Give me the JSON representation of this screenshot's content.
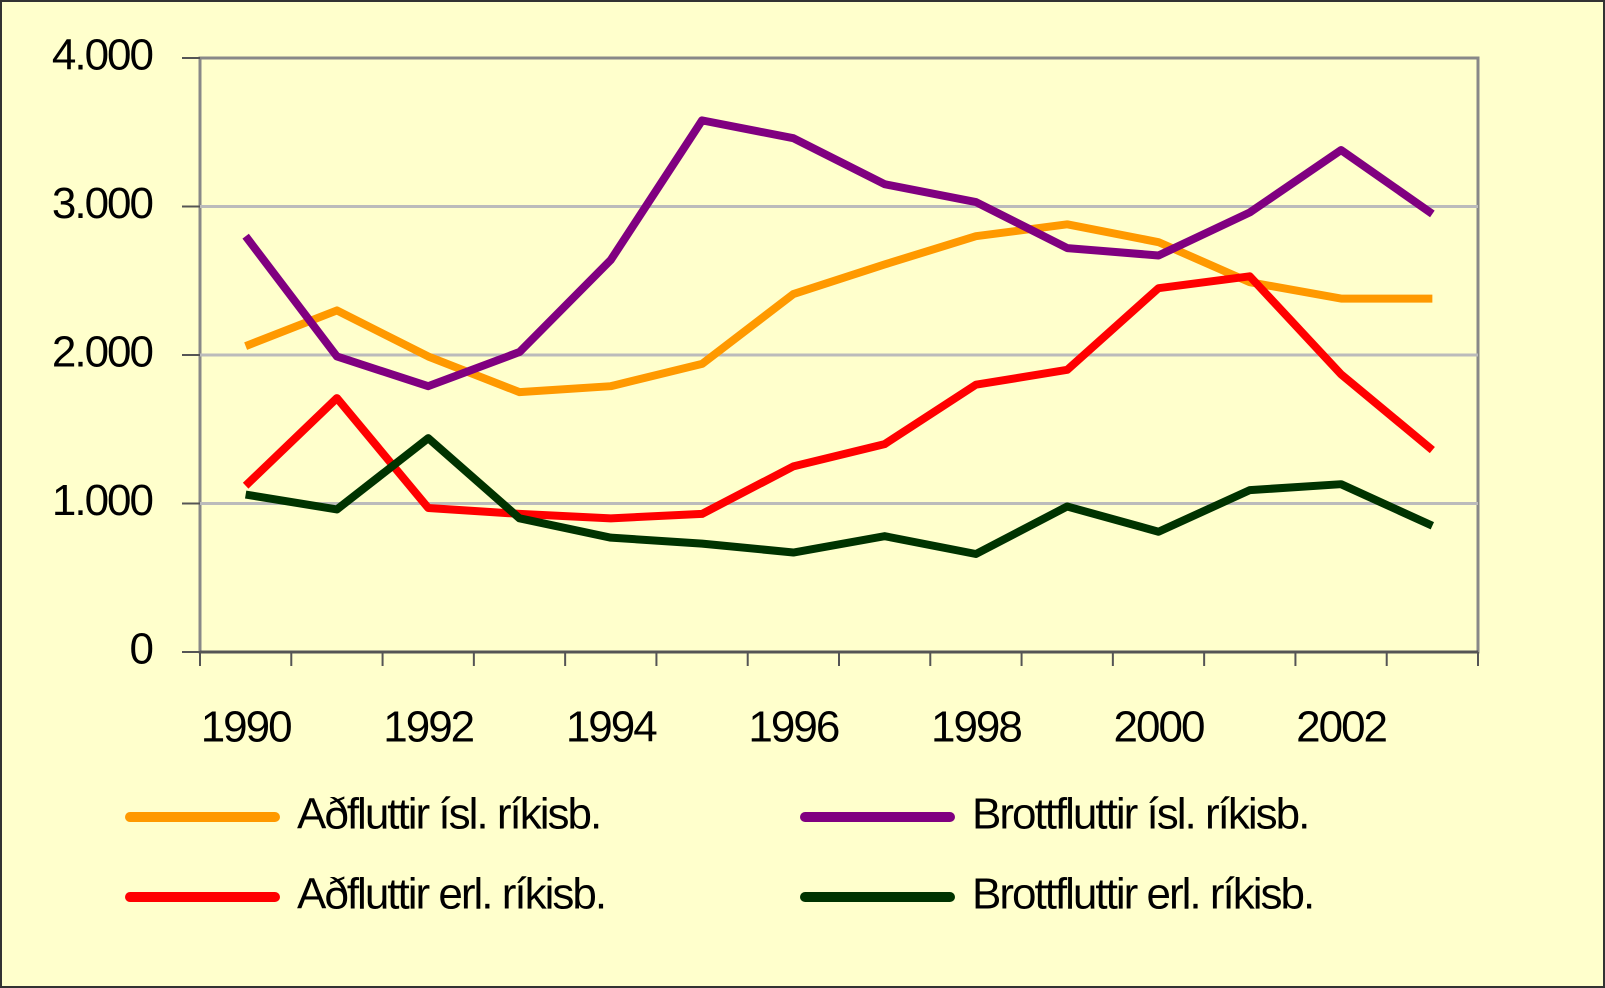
{
  "chart_data": {
    "type": "line",
    "categories": [
      "1990",
      null,
      "1992",
      null,
      "1994",
      null,
      "1996",
      null,
      "1998",
      null,
      "2000",
      null,
      "2002",
      null
    ],
    "series": [
      {
        "name": "Aðfluttir ísl. ríkisb.",
        "color": "#ff9900",
        "values": [
          2060,
          2300,
          1990,
          1750,
          1790,
          1940,
          2410,
          2610,
          2800,
          2880,
          2760,
          2490,
          2380,
          2380
        ]
      },
      {
        "name": "Brottfluttir ísl. ríkisb.",
        "color": "#800080",
        "values": [
          2800,
          1990,
          1790,
          2020,
          2640,
          3580,
          3460,
          3150,
          3030,
          2720,
          2670,
          2960,
          3380,
          2950
        ]
      },
      {
        "name": "Aðfluttir erl. ríkisb.",
        "color": "#ff0000",
        "values": [
          1120,
          1710,
          970,
          930,
          900,
          930,
          1250,
          1400,
          1800,
          1900,
          2450,
          2530,
          1870,
          1360
        ]
      },
      {
        "name": "Brottfluttir erl. ríkisb.",
        "color": "#003300",
        "values": [
          1060,
          960,
          1440,
          900,
          770,
          730,
          670,
          780,
          660,
          980,
          810,
          1090,
          1130,
          850
        ]
      }
    ],
    "ylim": [
      0,
      4000
    ],
    "yticks": [
      0,
      {
        "value": 1000,
        "label": "1.000"
      },
      {
        "value": 2000,
        "label": "2.000"
      },
      {
        "value": 3000,
        "label": "3.000"
      },
      {
        "value": 4000,
        "label": "4.000"
      }
    ],
    "grid": true
  }
}
